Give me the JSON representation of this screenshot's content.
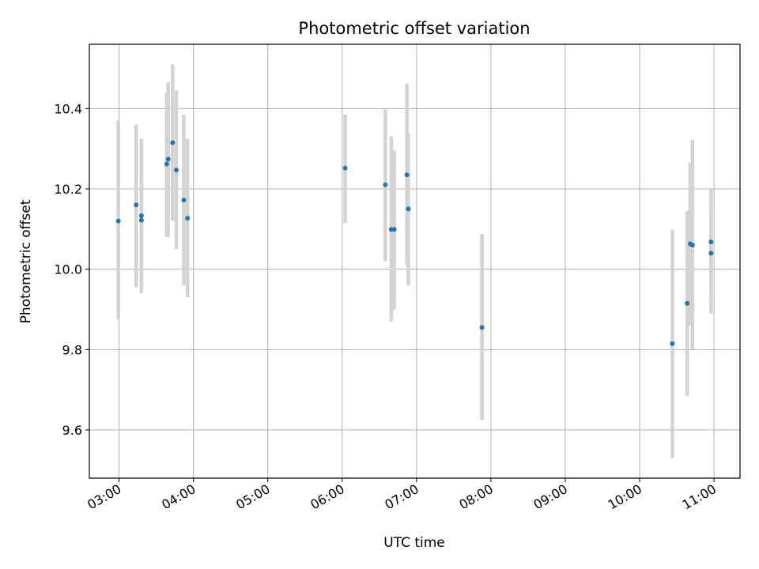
{
  "chart_data": {
    "type": "scatter",
    "title": "Photometric offset variation",
    "xlabel": "UTC time",
    "ylabel": "Photometric offset",
    "x_unit": "hours UTC",
    "xlim": [
      2.6,
      11.35
    ],
    "ylim": [
      9.48,
      10.56
    ],
    "x_ticks": [
      3,
      4,
      5,
      6,
      7,
      8,
      9,
      10,
      11
    ],
    "x_tick_labels": [
      "03:00",
      "04:00",
      "05:00",
      "06:00",
      "07:00",
      "08:00",
      "09:00",
      "10:00",
      "11:00"
    ],
    "y_ticks": [
      9.6,
      9.8,
      10.0,
      10.2,
      10.4
    ],
    "y_tick_labels": [
      "9.6",
      "9.8",
      "10.0",
      "10.2",
      "10.4"
    ],
    "grid": true,
    "legend": "none",
    "colors": {
      "point": "#1f77b4",
      "errorbar": "#d3d3d3",
      "grid": "#b0b0b0"
    },
    "series": [
      {
        "points": [
          {
            "x": 2.99,
            "y": 10.12,
            "ylo": 9.875,
            "yhi": 10.37
          },
          {
            "x": 3.23,
            "y": 10.16,
            "ylo": 9.955,
            "yhi": 10.36
          },
          {
            "x": 3.3,
            "y": 10.133,
            "ylo": 9.94,
            "yhi": 10.325
          },
          {
            "x": 3.3,
            "y": 10.122,
            "ylo": 9.94,
            "yhi": 10.32
          },
          {
            "x": 3.64,
            "y": 10.262,
            "ylo": 10.08,
            "yhi": 10.44
          },
          {
            "x": 3.66,
            "y": 10.274,
            "ylo": 10.08,
            "yhi": 10.465
          },
          {
            "x": 3.72,
            "y": 10.315,
            "ylo": 10.12,
            "yhi": 10.51
          },
          {
            "x": 3.77,
            "y": 10.247,
            "ylo": 10.05,
            "yhi": 10.445
          },
          {
            "x": 3.87,
            "y": 10.172,
            "ylo": 9.96,
            "yhi": 10.385
          },
          {
            "x": 3.92,
            "y": 10.127,
            "ylo": 9.93,
            "yhi": 10.325
          },
          {
            "x": 6.04,
            "y": 10.252,
            "ylo": 10.115,
            "yhi": 10.385
          },
          {
            "x": 6.58,
            "y": 10.21,
            "ylo": 10.02,
            "yhi": 10.398
          },
          {
            "x": 6.66,
            "y": 10.099,
            "ylo": 9.87,
            "yhi": 10.33
          },
          {
            "x": 6.7,
            "y": 10.099,
            "ylo": 9.9,
            "yhi": 10.296
          },
          {
            "x": 6.87,
            "y": 10.235,
            "ylo": 10.01,
            "yhi": 10.462
          },
          {
            "x": 6.89,
            "y": 10.15,
            "ylo": 9.96,
            "yhi": 10.34
          },
          {
            "x": 7.88,
            "y": 9.855,
            "ylo": 9.625,
            "yhi": 10.088
          },
          {
            "x": 10.44,
            "y": 9.815,
            "ylo": 9.53,
            "yhi": 10.098
          },
          {
            "x": 10.64,
            "y": 9.915,
            "ylo": 9.685,
            "yhi": 10.145
          },
          {
            "x": 10.68,
            "y": 10.063,
            "ylo": 9.86,
            "yhi": 10.265
          },
          {
            "x": 10.71,
            "y": 10.06,
            "ylo": 9.8,
            "yhi": 10.322
          },
          {
            "x": 10.96,
            "y": 10.068,
            "ylo": 9.89,
            "yhi": 10.2
          },
          {
            "x": 10.96,
            "y": 10.04,
            "ylo": 9.94,
            "yhi": 10.14
          }
        ]
      }
    ]
  }
}
